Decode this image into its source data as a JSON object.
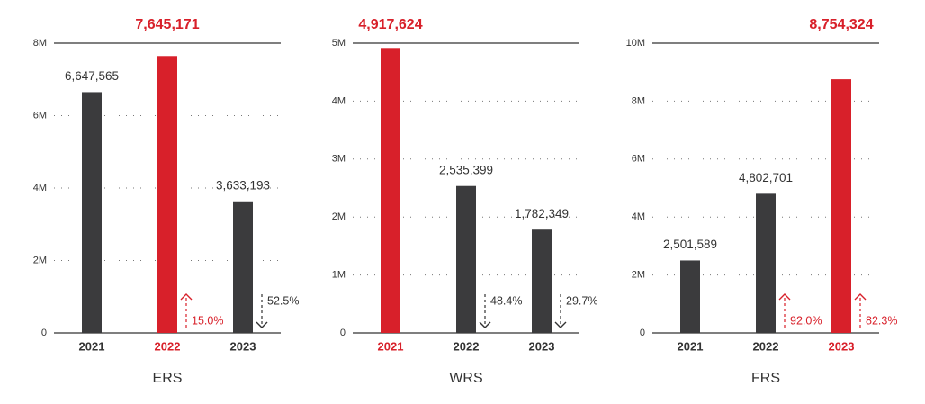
{
  "chart_data": [
    {
      "type": "bar",
      "xlabel": "ERS",
      "categories": [
        "2021",
        "2022",
        "2023"
      ],
      "values": [
        6647565,
        7645171,
        3633193
      ],
      "value_labels": [
        "6,647,565",
        "7,645,171",
        "3,633,193"
      ],
      "color": "#3b3b3d",
      "colors": [
        "#3b3b3d",
        "#d8202a",
        "#3b3b3d"
      ],
      "ylim": [
        0,
        8000000
      ],
      "yticks": [
        0,
        {
          "value": 2000000,
          "label": "2M"
        },
        {
          "value": 4000000,
          "label": "4M"
        },
        {
          "value": 6000000,
          "label": "6M"
        },
        {
          "value": 8000000,
          "label": "8M"
        }
      ],
      "changes": [
        null,
        15.0,
        52.5
      ],
      "change_labels": [
        null,
        "15.0%",
        "52.5%"
      ],
      "change_directions": [
        null,
        "up",
        "down"
      ]
    },
    {
      "type": "bar",
      "xlabel": "WRS",
      "categories": [
        "2021",
        "2022",
        "2023"
      ],
      "values": [
        4917624,
        2535399,
        1782349
      ],
      "value_labels": [
        "4,917,624",
        "2,535,399",
        "1,782,349"
      ],
      "color": "#3b3b3d",
      "colors": [
        "#d8202a",
        "#3b3b3d",
        "#3b3b3d"
      ],
      "ylim": [
        0,
        5000000
      ],
      "yticks": [
        0,
        {
          "value": 1000000,
          "label": "1M"
        },
        {
          "value": 2000000,
          "label": "2M"
        },
        {
          "value": 3000000,
          "label": "3M"
        },
        {
          "value": 4000000,
          "label": "4M"
        },
        {
          "value": 5000000,
          "label": "5M"
        }
      ],
      "changes": [
        null,
        48.4,
        29.7
      ],
      "change_labels": [
        null,
        "48.4%",
        "29.7%"
      ],
      "change_directions": [
        null,
        "down",
        "down"
      ]
    },
    {
      "type": "bar",
      "xlabel": "FRS",
      "categories": [
        "2021",
        "2022",
        "2023"
      ],
      "values": [
        2501589,
        4802701,
        8754324
      ],
      "value_labels": [
        "2,501,589",
        "4,802,701",
        "8,754,324"
      ],
      "color": "#3b3b3d",
      "colors": [
        "#3b3b3d",
        "#3b3b3d",
        "#d8202a"
      ],
      "ylim": [
        0,
        10000000
      ],
      "yticks": [
        0,
        {
          "value": 2000000,
          "label": "2M"
        },
        {
          "value": 4000000,
          "label": "4M"
        },
        {
          "value": 6000000,
          "label": "6M"
        },
        {
          "value": 8000000,
          "label": "8M"
        },
        {
          "value": 10000000,
          "label": "10M"
        }
      ],
      "changes": [
        null,
        92.0,
        82.3
      ],
      "change_labels": [
        null,
        "92.0%",
        "82.3%"
      ],
      "change_directions": [
        null,
        "up",
        "up"
      ]
    }
  ]
}
